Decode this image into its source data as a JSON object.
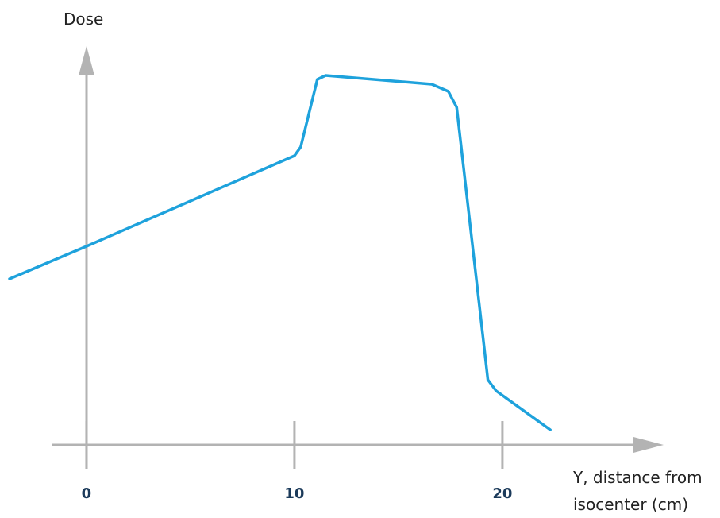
{
  "chart_data": {
    "type": "line",
    "y_axis_label": "Dose",
    "x_axis_label": "Y, distance from isocenter (cm)",
    "x": [
      -3.7,
      0,
      10,
      10.3,
      11.1,
      11.5,
      16.6,
      17.4,
      17.8,
      19.3,
      19.7,
      22.3
    ],
    "series": [
      {
        "color": "#1ea2dc",
        "values": [
          41.8,
          50,
          72.8,
          75,
          92,
          93,
          90.8,
          89,
          85,
          16.4,
          13.6,
          3.8
        ]
      }
    ],
    "xlim": [
      -3.7,
      27.5
    ],
    "xticks": [
      0,
      10,
      20
    ],
    "ylim": [
      0,
      100
    ]
  }
}
